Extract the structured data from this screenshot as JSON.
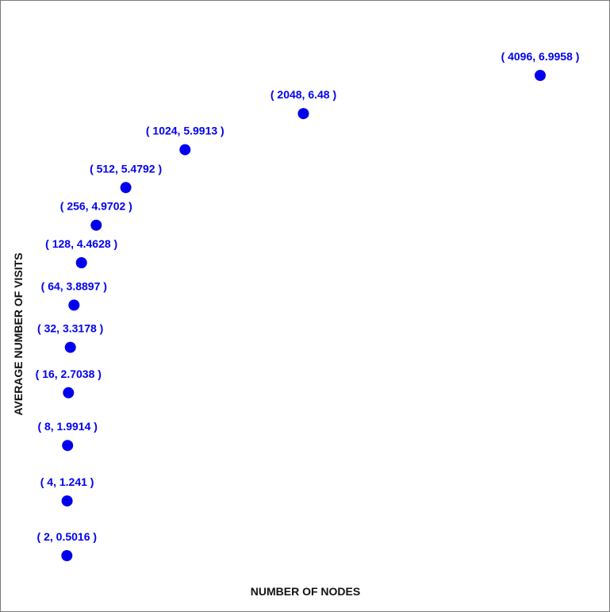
{
  "chart_data": {
    "type": "scatter",
    "xlabel": "NUMBER OF NODES",
    "ylabel": "AVERAGE NUMBER OF VISITS",
    "grid": false,
    "point_color": "#0000ee",
    "points": [
      {
        "x": 2,
        "y": 0.5016,
        "label": "( 2, 0.5016 )"
      },
      {
        "x": 4,
        "y": 1.241,
        "label": "( 4, 1.241 )"
      },
      {
        "x": 8,
        "y": 1.9914,
        "label": "( 8, 1.9914 )"
      },
      {
        "x": 16,
        "y": 2.7038,
        "label": "( 16, 2.7038 )"
      },
      {
        "x": 32,
        "y": 3.3178,
        "label": "( 32, 3.3178 )"
      },
      {
        "x": 64,
        "y": 3.8897,
        "label": "( 64, 3.8897 )"
      },
      {
        "x": 128,
        "y": 4.4628,
        "label": "( 128, 4.4628 )"
      },
      {
        "x": 256,
        "y": 4.9702,
        "label": "( 256, 4.9702 )"
      },
      {
        "x": 512,
        "y": 5.4792,
        "label": "( 512, 5.4792 )"
      },
      {
        "x": 1024,
        "y": 5.9913,
        "label": "( 1024, 5.9913 )"
      },
      {
        "x": 2048,
        "y": 6.48,
        "label": "( 2048, 6.48 )"
      },
      {
        "x": 4096,
        "y": 6.9958,
        "label": "( 4096, 6.9958 )"
      }
    ]
  }
}
